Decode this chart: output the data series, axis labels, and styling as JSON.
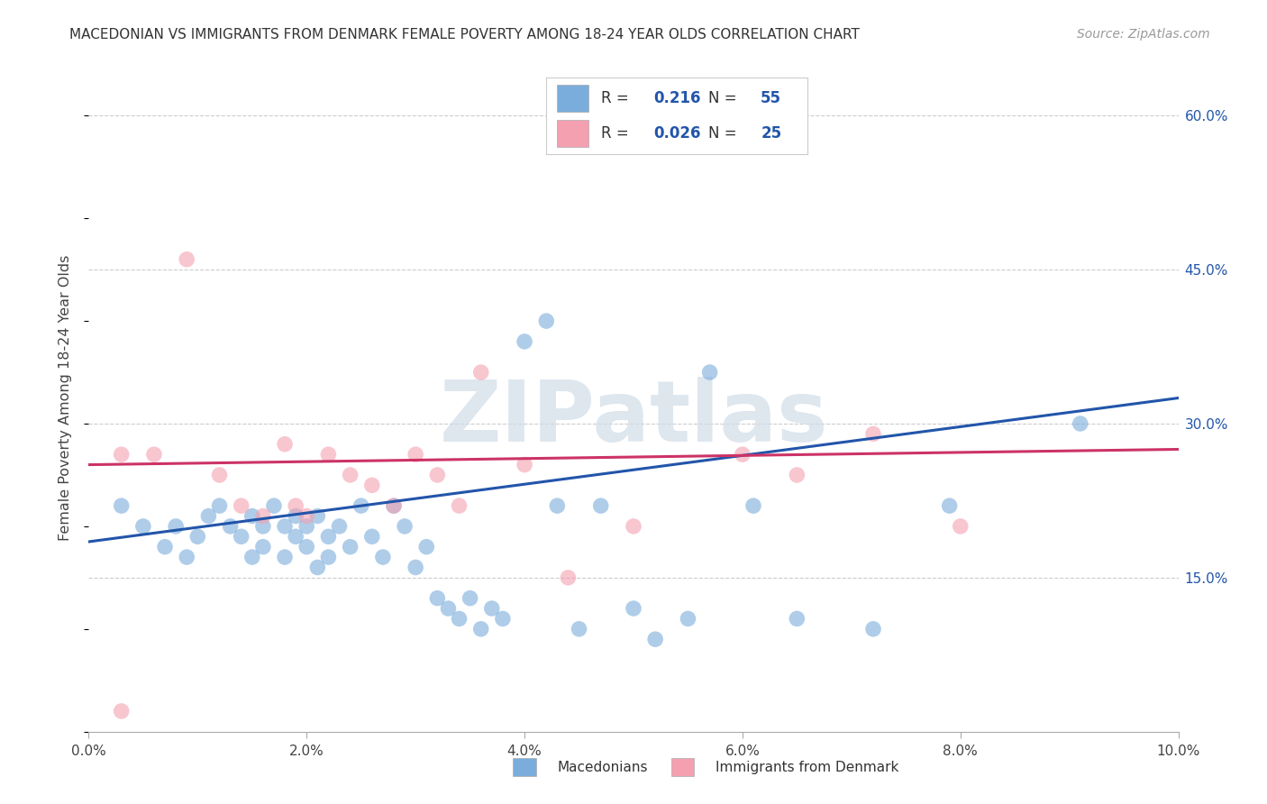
{
  "title": "MACEDONIAN VS IMMIGRANTS FROM DENMARK FEMALE POVERTY AMONG 18-24 YEAR OLDS CORRELATION CHART",
  "source": "Source: ZipAtlas.com",
  "ylabel": "Female Poverty Among 18-24 Year Olds",
  "xlim": [
    0.0,
    0.1
  ],
  "ylim": [
    0.0,
    0.65
  ],
  "xticks": [
    0.0,
    0.02,
    0.04,
    0.06,
    0.08,
    0.1
  ],
  "xtick_labels": [
    "0.0%",
    "2.0%",
    "4.0%",
    "6.0%",
    "8.0%",
    "10.0%"
  ],
  "yticks_right": [
    0.15,
    0.3,
    0.45,
    0.6
  ],
  "ytick_labels_right": [
    "15.0%",
    "30.0%",
    "45.0%",
    "60.0%"
  ],
  "grid_color": "#cccccc",
  "background_color": "#ffffff",
  "blue_color": "#7aaddb",
  "pink_color": "#f4a0b0",
  "blue_line_color": "#2255aa",
  "pink_line_color": "#cc3366",
  "watermark_color": "#d0dce8",
  "watermark": "ZIPatlas",
  "legend_R1": "0.216",
  "legend_N1": "55",
  "legend_R2": "0.026",
  "legend_N2": "25",
  "blue_scatter_x": [
    0.003,
    0.005,
    0.007,
    0.008,
    0.009,
    0.01,
    0.011,
    0.012,
    0.013,
    0.014,
    0.015,
    0.015,
    0.016,
    0.016,
    0.017,
    0.018,
    0.018,
    0.019,
    0.019,
    0.02,
    0.02,
    0.021,
    0.021,
    0.022,
    0.022,
    0.023,
    0.024,
    0.025,
    0.026,
    0.027,
    0.028,
    0.029,
    0.03,
    0.031,
    0.032,
    0.033,
    0.034,
    0.035,
    0.036,
    0.037,
    0.038,
    0.04,
    0.042,
    0.043,
    0.045,
    0.047,
    0.05,
    0.052,
    0.055,
    0.057,
    0.061,
    0.065,
    0.072,
    0.079,
    0.091
  ],
  "blue_scatter_y": [
    0.22,
    0.2,
    0.18,
    0.2,
    0.17,
    0.19,
    0.21,
    0.22,
    0.2,
    0.19,
    0.21,
    0.17,
    0.2,
    0.18,
    0.22,
    0.2,
    0.17,
    0.21,
    0.19,
    0.2,
    0.18,
    0.21,
    0.16,
    0.19,
    0.17,
    0.2,
    0.18,
    0.22,
    0.19,
    0.17,
    0.22,
    0.2,
    0.16,
    0.18,
    0.13,
    0.12,
    0.11,
    0.13,
    0.1,
    0.12,
    0.11,
    0.38,
    0.4,
    0.22,
    0.1,
    0.22,
    0.12,
    0.09,
    0.11,
    0.35,
    0.22,
    0.11,
    0.1,
    0.22,
    0.3
  ],
  "pink_scatter_x": [
    0.003,
    0.006,
    0.009,
    0.012,
    0.014,
    0.016,
    0.018,
    0.019,
    0.02,
    0.022,
    0.024,
    0.026,
    0.028,
    0.03,
    0.032,
    0.034,
    0.036,
    0.04,
    0.044,
    0.05,
    0.06,
    0.065,
    0.072,
    0.08,
    0.003
  ],
  "pink_scatter_y": [
    0.27,
    0.27,
    0.46,
    0.25,
    0.22,
    0.21,
    0.28,
    0.22,
    0.21,
    0.27,
    0.25,
    0.24,
    0.22,
    0.27,
    0.25,
    0.22,
    0.35,
    0.26,
    0.15,
    0.2,
    0.27,
    0.25,
    0.29,
    0.2,
    0.02
  ],
  "blue_trend_x": [
    0.0,
    0.1
  ],
  "blue_trend_y": [
    0.185,
    0.325
  ],
  "pink_trend_x": [
    0.0,
    0.1
  ],
  "pink_trend_y": [
    0.26,
    0.275
  ]
}
